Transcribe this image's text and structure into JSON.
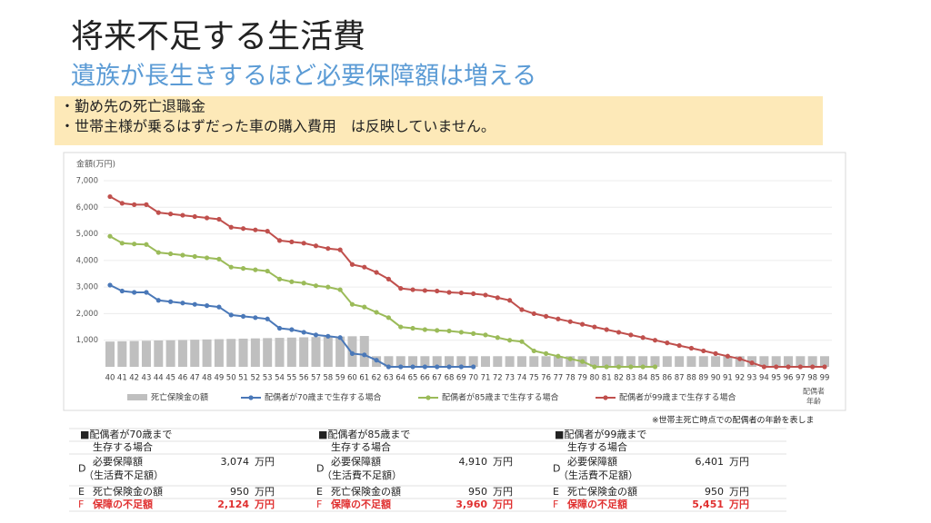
{
  "header": {
    "title": "将来不足する生活費",
    "subtitle": "遺族が長生きするほど必要保障額は増える",
    "notes": [
      "・勤め先の死亡退職金",
      "・世帯主様が乗るはずだった車の購入費用　は反映していません。"
    ]
  },
  "chart_data": {
    "type": "combo",
    "y_label": "金額(万円)",
    "x_label": [
      "配偶者",
      "年齢"
    ],
    "categories": [
      "40",
      "41",
      "42",
      "43",
      "44",
      "45",
      "46",
      "47",
      "48",
      "49",
      "50",
      "51",
      "52",
      "53",
      "54",
      "55",
      "56",
      "57",
      "58",
      "59",
      "60",
      "61",
      "62",
      "63",
      "64",
      "65",
      "66",
      "67",
      "68",
      "69",
      "70",
      "71",
      "72",
      "73",
      "74",
      "75",
      "76",
      "77",
      "78",
      "79",
      "80",
      "81",
      "82",
      "83",
      "84",
      "85",
      "86",
      "87",
      "88",
      "89",
      "90",
      "91",
      "92",
      "93",
      "94",
      "95",
      "96",
      "97",
      "98",
      "99"
    ],
    "ylim": [
      0,
      7000
    ],
    "yticks": [
      {
        "value": 1000,
        "label": "1,000"
      },
      {
        "value": 2000,
        "label": "2,000"
      },
      {
        "value": 3000,
        "label": "3,000"
      },
      {
        "value": 4000,
        "label": "4,000"
      },
      {
        "value": 5000,
        "label": "5,000"
      },
      {
        "value": 6000,
        "label": "6,000"
      },
      {
        "value": 7000,
        "label": "7,000"
      }
    ],
    "series": [
      {
        "name": "死亡保険金の額",
        "type": "bar",
        "color": "#bfbfbf",
        "values": [
          950,
          960,
          970,
          980,
          990,
          1000,
          1010,
          1020,
          1030,
          1040,
          1050,
          1060,
          1070,
          1080,
          1090,
          1100,
          1110,
          1120,
          1130,
          1140,
          1150,
          1160,
          400,
          400,
          400,
          400,
          400,
          400,
          400,
          400,
          400,
          400,
          400,
          400,
          400,
          400,
          400,
          400,
          400,
          400,
          400,
          400,
          400,
          400,
          400,
          400,
          400,
          400,
          400,
          400,
          400,
          400,
          400,
          400,
          400,
          400,
          400,
          400,
          400,
          400
        ]
      },
      {
        "name": "配偶者が70歳まで生存する場合",
        "type": "line",
        "color": "#4a78b8",
        "values": [
          3074,
          2850,
          2800,
          2800,
          2500,
          2450,
          2400,
          2350,
          2300,
          2250,
          1950,
          1900,
          1850,
          1800,
          1450,
          1400,
          1300,
          1200,
          1150,
          1100,
          500,
          450,
          250,
          0,
          0,
          0,
          0,
          0,
          0,
          0,
          0,
          null,
          null,
          null,
          null,
          null,
          null,
          null,
          null,
          null,
          null,
          null,
          null,
          null,
          null,
          null,
          null,
          null,
          null,
          null,
          null,
          null,
          null,
          null,
          null,
          null,
          null,
          null,
          null,
          null
        ]
      },
      {
        "name": "配偶者が85歳まで生存する場合",
        "type": "line",
        "color": "#9bbb59",
        "values": [
          4910,
          4650,
          4620,
          4600,
          4300,
          4250,
          4200,
          4150,
          4100,
          4050,
          3750,
          3700,
          3650,
          3600,
          3300,
          3200,
          3150,
          3050,
          3000,
          2900,
          2350,
          2250,
          2050,
          1850,
          1500,
          1450,
          1400,
          1370,
          1350,
          1300,
          1250,
          1200,
          1100,
          1000,
          950,
          600,
          500,
          400,
          300,
          200,
          0,
          0,
          0,
          0,
          0,
          0,
          null,
          null,
          null,
          null,
          null,
          null,
          null,
          null,
          null,
          null,
          null,
          null,
          null,
          null
        ]
      },
      {
        "name": "配偶者が99歳まで生存する場合",
        "type": "line",
        "color": "#c0504d",
        "values": [
          6401,
          6150,
          6100,
          6100,
          5800,
          5750,
          5700,
          5650,
          5600,
          5550,
          5250,
          5200,
          5150,
          5100,
          4750,
          4700,
          4650,
          4550,
          4450,
          4400,
          3850,
          3750,
          3550,
          3300,
          2950,
          2900,
          2870,
          2850,
          2800,
          2780,
          2750,
          2700,
          2600,
          2500,
          2150,
          2000,
          1900,
          1800,
          1700,
          1600,
          1500,
          1400,
          1300,
          1200,
          1100,
          1000,
          900,
          800,
          700,
          600,
          500,
          400,
          300,
          150,
          0,
          0,
          0,
          0,
          0,
          0
        ]
      }
    ],
    "note": "※世帯主死亡時点での配偶者の年齢を表しま"
  },
  "tables": [
    {
      "heading": [
        "■配偶者が70歳まで",
        "生存する場合"
      ],
      "rows": [
        {
          "code": "D",
          "label": [
            "必要保障額",
            "（生活費不足額）"
          ],
          "value": "3,074",
          "unit": "万円"
        },
        {
          "code": "E",
          "label": [
            "死亡保険金の額"
          ],
          "value": "950",
          "unit": "万円"
        },
        {
          "code": "F",
          "label": [
            "保障の不足額"
          ],
          "value": "2,124",
          "unit": "万円"
        }
      ]
    },
    {
      "heading": [
        "■配偶者が85歳まで",
        "生存する場合"
      ],
      "rows": [
        {
          "code": "D",
          "label": [
            "必要保障額",
            "（生活費不足額）"
          ],
          "value": "4,910",
          "unit": "万円"
        },
        {
          "code": "E",
          "label": [
            "死亡保険金の額"
          ],
          "value": "950",
          "unit": "万円"
        },
        {
          "code": "F",
          "label": [
            "保障の不足額"
          ],
          "value": "3,960",
          "unit": "万円"
        }
      ]
    },
    {
      "heading": [
        "■配偶者が99歳まで",
        "生存する場合"
      ],
      "rows": [
        {
          "code": "D",
          "label": [
            "必要保障額",
            "（生活費不足額）"
          ],
          "value": "6,401",
          "unit": "万円"
        },
        {
          "code": "E",
          "label": [
            "死亡保険金の額"
          ],
          "value": "950",
          "unit": "万円"
        },
        {
          "code": "F",
          "label": [
            "保障の不足額"
          ],
          "value": "5,451",
          "unit": "万円"
        }
      ]
    }
  ]
}
